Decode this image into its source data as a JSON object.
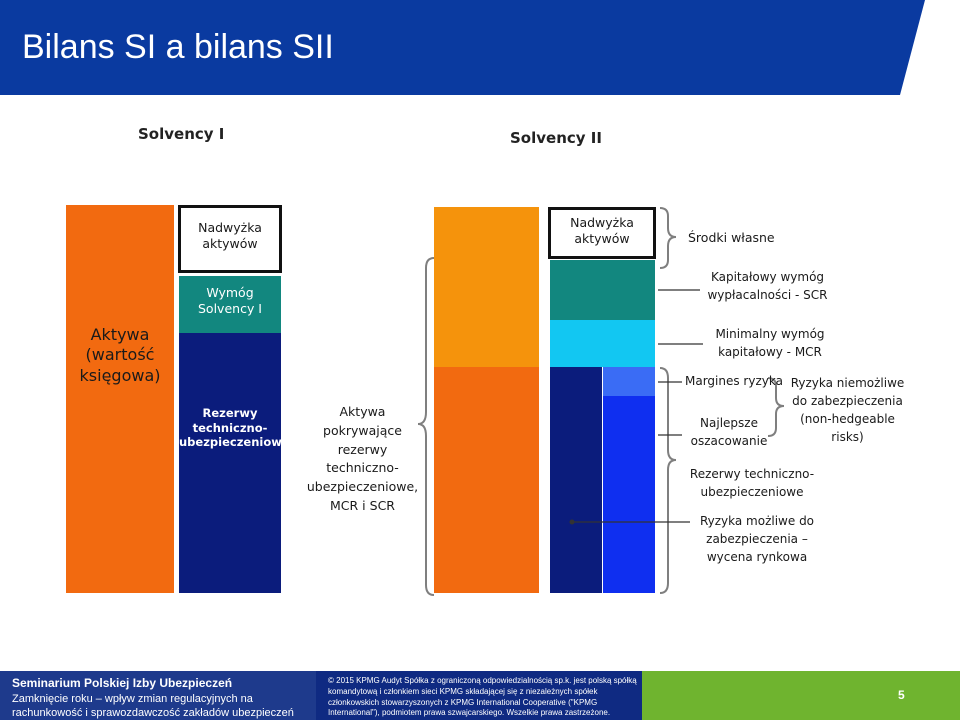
{
  "header": {
    "title": "Bilans SI a bilans SII"
  },
  "colors": {
    "header_blue": "#0a3aa0",
    "orange": "#f26a10",
    "navy": "#0b1c7c",
    "teal": "#12877f",
    "cyan": "#12c7f2",
    "blue": "#0f2ff0",
    "mid_blue": "#3a6cf5",
    "footer_green": "#6fb42f"
  },
  "solvency1": {
    "heading": "Solvency I",
    "assets_line1": "Aktywa",
    "assets_line2": "(wartość",
    "assets_line3": "księgowa)",
    "surplus_line1": "Nadwyżka",
    "surplus_line2": "aktywów",
    "requirement_line1": "Wymóg",
    "requirement_line2": "Solvency I",
    "reserves_line1": "Rezerwy",
    "reserves_line2": "techniczno-",
    "reserves_line3": "ubezpieczeniowe"
  },
  "solvency2": {
    "heading": "Solvency II",
    "surplus_line1": "Nadwyżka",
    "surplus_line2": "aktywów",
    "covering_assets": {
      "line1": "Aktywa",
      "line2": "pokrywające",
      "line3": "rezerwy",
      "line4": "techniczno-",
      "line5": "ubezpieczeniowe,",
      "line6": "MCR i SCR"
    },
    "labels": {
      "own_funds": "Środki własne",
      "scr_line1": "Kapitałowy wymóg",
      "scr_line2": "wypłacalności - SCR",
      "mcr_line1": "Minimalny wymóg",
      "mcr_line2": "kapitałowy - MCR",
      "risk_margin": "Margines ryzyka",
      "best_estimate_line1": "Najlepsze",
      "best_estimate_line2": "oszacowanie",
      "non_hedgeable_line1": "Ryzyka niemożliwe",
      "non_hedgeable_line2": "do zabezpieczenia",
      "non_hedgeable_line3": "(non-hedgeable",
      "non_hedgeable_line4": "risks)",
      "tech_reserves_line1": "Rezerwy techniczno-",
      "tech_reserves_line2": "ubezpieczeniowe",
      "hedgeable_line1": "Ryzyka możliwe do",
      "hedgeable_line2": "zabezpieczenia –",
      "hedgeable_line3": "wycena rynkowa"
    }
  },
  "footer": {
    "seminar_title": "Seminarium Polskiej Izby Ubezpieczeń",
    "seminar_subtitle": "Zamknięcie roku – wpływ zmian regulacyjnych na rachunkowość i sprawozdawczość zakładów ubezpieczeń",
    "copyright": "© 2015 KPMG Audyt Spółka z ograniczoną odpowiedzialnością sp.k. jest polską spółką komandytową i członkiem sieci KPMG składającej się z niezależnych spółek członkowskich stowarzyszonych z KPMG International Cooperative (\"KPMG International\"), podmiotem prawa szwajcarskiego. Wszelkie prawa zastrzeżone.",
    "page_number": "5"
  }
}
